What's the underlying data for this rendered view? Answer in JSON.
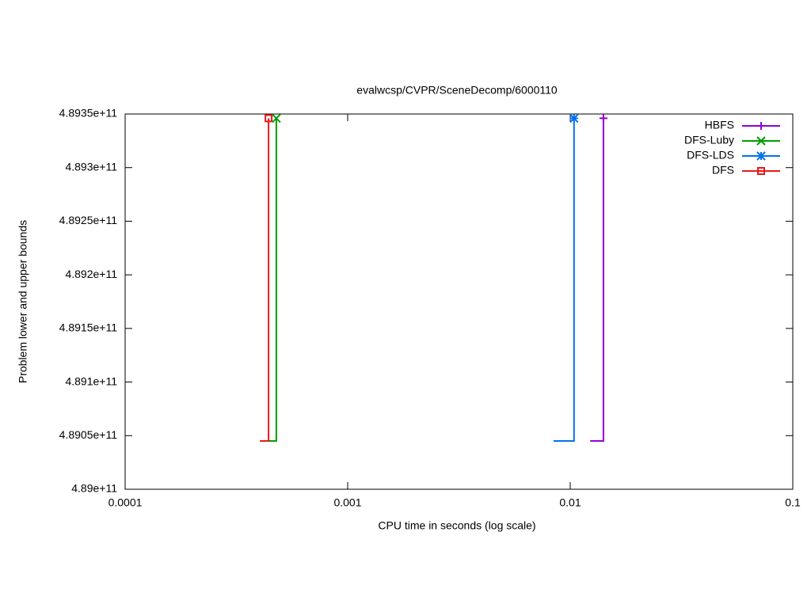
{
  "chart_data": {
    "type": "line",
    "title": "evalwcsp/CVPR/SceneDecomp/6000110",
    "xlabel": "CPU time in seconds (log scale)",
    "ylabel": "Problem lower and upper bounds",
    "xscale": "log",
    "xlim": [
      0.0001,
      0.1
    ],
    "xticks": [
      0.0001,
      0.001,
      0.01,
      0.1
    ],
    "ylim": [
      489000000000,
      489350000000
    ],
    "yticks": [
      {
        "value": 489000000000,
        "label": "4.89e+11"
      },
      {
        "value": 489050000000,
        "label": "4.8905e+11"
      },
      {
        "value": 489100000000,
        "label": "4.891e+11"
      },
      {
        "value": 489150000000,
        "label": "4.8915e+11"
      },
      {
        "value": 489200000000,
        "label": "4.892e+11"
      },
      {
        "value": 489250000000,
        "label": "4.8925e+11"
      },
      {
        "value": 489300000000,
        "label": "4.893e+11"
      },
      {
        "value": 489350000000,
        "label": "4.8935e+11"
      }
    ],
    "legend": "top-right",
    "series": [
      {
        "name": "HBFS",
        "color": "#9400d3",
        "marker": "plus",
        "x": [
          0.0123,
          0.0141,
          0.0141
        ],
        "values": [
          489045000000,
          489045000000,
          489346000000
        ]
      },
      {
        "name": "DFS-Luby",
        "color": "#009e00",
        "marker": "x",
        "x": [
          0.000441,
          0.000478,
          0.000478
        ],
        "values": [
          489045000000,
          489045000000,
          489346000000
        ]
      },
      {
        "name": "DFS-LDS",
        "color": "#0072f0",
        "marker": "star",
        "x": [
          0.00842,
          0.0104,
          0.0104
        ],
        "values": [
          489045000000,
          489045000000,
          489346000000
        ]
      },
      {
        "name": "DFS",
        "color": "#e51a1a",
        "marker": "square",
        "x": [
          0.000403,
          0.000441,
          0.000441
        ],
        "values": [
          489045000000,
          489045000000,
          489346000000
        ]
      }
    ]
  }
}
